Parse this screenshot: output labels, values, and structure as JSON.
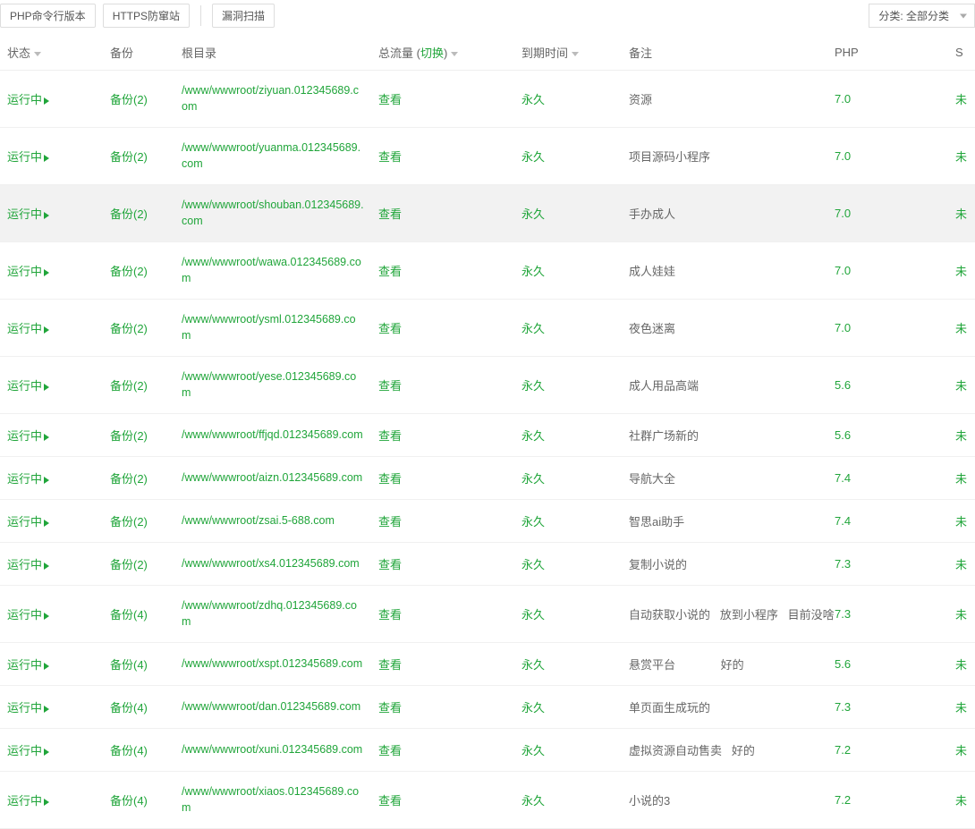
{
  "toolbar": {
    "php_cli": "PHP命令行版本",
    "https_defense": "HTTPS防窜站",
    "vuln_scan": "漏洞扫描",
    "category_label": "分类: 全部分类"
  },
  "headers": {
    "status": "状态",
    "backup": "备份",
    "root": "根目录",
    "traffic": "总流量",
    "traffic_switch": "切换",
    "expire": "到期时间",
    "note": "备注",
    "php": "PHP",
    "ssl": "S"
  },
  "common": {
    "running": "运行中",
    "view": "查看",
    "forever": "永久"
  },
  "rows": [
    {
      "backup": "备份(2)",
      "root": "/www/wwwroot/ziyuan.012345689.com",
      "note": "资源",
      "php": "7.0"
    },
    {
      "backup": "备份(2)",
      "root": "/www/wwwroot/yuanma.012345689.com",
      "note": "项目源码小程序",
      "php": "7.0"
    },
    {
      "backup": "备份(2)",
      "root": "/www/wwwroot/shouban.012345689.com",
      "note": "手办成人",
      "php": "7.0",
      "hovered": true
    },
    {
      "backup": "备份(2)",
      "root": "/www/wwwroot/wawa.012345689.com",
      "note": "成人娃娃",
      "php": "7.0"
    },
    {
      "backup": "备份(2)",
      "root": "/www/wwwroot/ysml.012345689.com",
      "note": "夜色迷离",
      "php": "7.0"
    },
    {
      "backup": "备份(2)",
      "root": "/www/wwwroot/yese.012345689.com",
      "note": "成人用品高端",
      "php": "5.6"
    },
    {
      "backup": "备份(2)",
      "root": "/www/wwwroot/ffjqd.012345689.com",
      "note": "社群广场新的",
      "php": "5.6"
    },
    {
      "backup": "备份(2)",
      "root": "/www/wwwroot/aizn.012345689.com",
      "note": "导航大全",
      "php": "7.4"
    },
    {
      "backup": "备份(2)",
      "root": "/www/wwwroot/zsai.5-688.com",
      "note": "智思ai助手",
      "php": "7.4"
    },
    {
      "backup": "备份(2)",
      "root": "/www/wwwroot/xs4.012345689.com",
      "note": "复制小说的",
      "php": "7.3"
    },
    {
      "backup": "备份(4)",
      "root": "/www/wwwroot/zdhq.012345689.com",
      "note": "自动获取小说的   放到小程序   目前没啥",
      "php": "7.3"
    },
    {
      "backup": "备份(4)",
      "root": "/www/wwwroot/xspt.012345689.com",
      "note": "悬赏平台              好的",
      "php": "5.6"
    },
    {
      "backup": "备份(4)",
      "root": "/www/wwwroot/dan.012345689.com",
      "note": "单页面生成玩的",
      "php": "7.3"
    },
    {
      "backup": "备份(4)",
      "root": "/www/wwwroot/xuni.012345689.com",
      "note": "虚拟资源自动售卖   好的",
      "php": "7.2"
    },
    {
      "backup": "备份(4)",
      "root": "/www/wwwroot/xiaos.012345689.com",
      "note": "小说的3",
      "php": "7.2"
    }
  ],
  "colors": {
    "link": "#20a53a",
    "text": "#666666",
    "border": "#eeeeee",
    "hover_bg": "#f2f2f2"
  }
}
